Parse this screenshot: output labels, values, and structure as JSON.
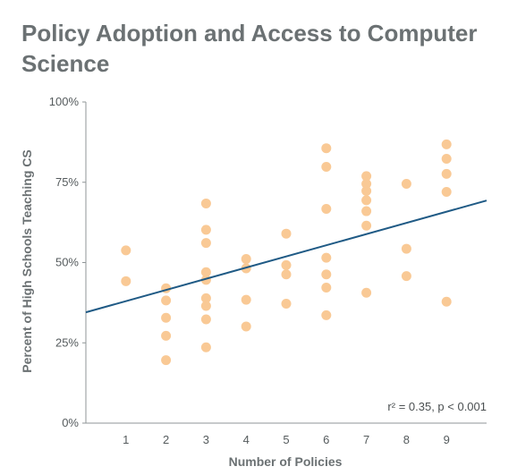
{
  "chart_data": {
    "type": "scatter",
    "title": "Policy Adoption and Access to Computer Science",
    "xlabel": "Number of Policies",
    "ylabel": "Percent of High Schools Teaching CS",
    "x_ticks": [
      "1",
      "2",
      "3",
      "4",
      "5",
      "6",
      "7",
      "8",
      "9"
    ],
    "y_ticks": [
      "0%",
      "25%",
      "50%",
      "75%",
      "100%"
    ],
    "xlim": [
      0,
      10
    ],
    "ylim": [
      0,
      100
    ],
    "grid": false,
    "annotation": "r² = 0.35, p < 0.001",
    "colors": {
      "points": "#f9c995",
      "trendline": "#1f5a85",
      "axis": "#8f9597"
    },
    "trendline": {
      "x": [
        0,
        10
      ],
      "y": [
        34.5,
        69.3
      ]
    },
    "series": [
      {
        "points": [
          [
            1,
            53.8
          ],
          [
            1,
            44.2
          ],
          [
            2,
            42.0
          ],
          [
            2,
            38.2
          ],
          [
            2,
            32.8
          ],
          [
            2,
            27.2
          ],
          [
            2,
            19.6
          ],
          [
            3,
            68.4
          ],
          [
            3,
            60.2
          ],
          [
            3,
            56.1
          ],
          [
            3,
            47.0
          ],
          [
            3,
            44.6
          ],
          [
            3,
            38.9
          ],
          [
            3,
            36.5
          ],
          [
            3,
            32.3
          ],
          [
            3,
            23.6
          ],
          [
            4,
            51.1
          ],
          [
            4,
            48.2
          ],
          [
            4,
            38.4
          ],
          [
            4,
            30.1
          ],
          [
            5,
            59.0
          ],
          [
            5,
            49.2
          ],
          [
            5,
            46.3
          ],
          [
            5,
            37.2
          ],
          [
            6,
            85.6
          ],
          [
            6,
            79.8
          ],
          [
            6,
            66.7
          ],
          [
            6,
            51.5
          ],
          [
            6,
            46.3
          ],
          [
            6,
            42.2
          ],
          [
            6,
            33.6
          ],
          [
            7,
            76.9
          ],
          [
            7,
            74.5
          ],
          [
            7,
            72.3
          ],
          [
            7,
            69.4
          ],
          [
            7,
            66.0
          ],
          [
            7,
            61.5
          ],
          [
            7,
            40.6
          ],
          [
            8,
            74.5
          ],
          [
            8,
            54.3
          ],
          [
            8,
            45.8
          ],
          [
            9,
            86.8
          ],
          [
            9,
            82.3
          ],
          [
            9,
            77.6
          ],
          [
            9,
            72.0
          ],
          [
            9,
            37.8
          ]
        ]
      }
    ]
  }
}
